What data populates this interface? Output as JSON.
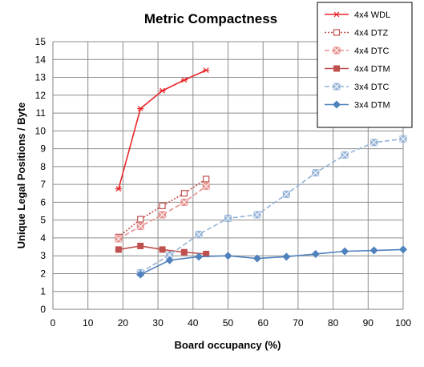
{
  "chart_data": {
    "type": "line",
    "title": "Metric Compactness",
    "xlabel": "Board occupancy (%)",
    "ylabel": "Unique Legal Positions / Byte",
    "xlim": [
      0,
      100
    ],
    "ylim": [
      0,
      15
    ],
    "x_ticks": [
      0,
      10,
      20,
      30,
      40,
      50,
      60,
      70,
      80,
      90,
      100
    ],
    "y_ticks": [
      0,
      1,
      2,
      3,
      4,
      5,
      6,
      7,
      8,
      9,
      10,
      11,
      12,
      13,
      14,
      15
    ],
    "grid": true,
    "legend_position": "top-right",
    "series": [
      {
        "name": "4x4 WDL",
        "color": "#e8272a",
        "line_style": "solid",
        "marker": "asterisk",
        "x": [
          18.75,
          25,
          31.25,
          37.5,
          43.75
        ],
        "y": [
          6.75,
          11.25,
          12.25,
          12.85,
          13.4
        ]
      },
      {
        "name": "4x4 DTZ",
        "color": "#c0504d",
        "line_style": "dotted",
        "marker": "open-square",
        "x": [
          18.75,
          25,
          31.25,
          37.5,
          43.75
        ],
        "y": [
          4.05,
          5.05,
          5.8,
          6.5,
          7.3
        ]
      },
      {
        "name": "4x4 DTC",
        "color": "#e6928f",
        "line_style": "dashed",
        "marker": "crossed-square",
        "x": [
          18.75,
          25,
          31.25,
          37.5,
          43.75
        ],
        "y": [
          3.95,
          4.65,
          5.3,
          6.0,
          6.9
        ]
      },
      {
        "name": "4x4 DTM",
        "color": "#c0504d",
        "line_style": "solid",
        "marker": "filled-square",
        "x": [
          18.75,
          25,
          31.25,
          37.5,
          43.75
        ],
        "y": [
          3.35,
          3.55,
          3.35,
          3.2,
          3.1
        ]
      },
      {
        "name": "3x4 DTC",
        "color": "#95b3d7",
        "line_style": "dashed",
        "marker": "crossed-square",
        "x": [
          25,
          33.33,
          41.67,
          50,
          58.33,
          66.67,
          75,
          83.33,
          91.67,
          100
        ],
        "y": [
          2.05,
          3.05,
          4.2,
          5.1,
          5.3,
          6.45,
          7.65,
          8.65,
          9.35,
          9.55
        ]
      },
      {
        "name": "3x4 DTM",
        "color": "#4f81bd",
        "line_style": "solid",
        "marker": "diamond",
        "x": [
          25,
          33.33,
          41.67,
          50,
          58.33,
          66.67,
          75,
          83.33,
          91.67,
          100
        ],
        "y": [
          1.95,
          2.75,
          2.95,
          3.0,
          2.85,
          2.95,
          3.1,
          3.25,
          3.3,
          3.35
        ]
      }
    ]
  }
}
